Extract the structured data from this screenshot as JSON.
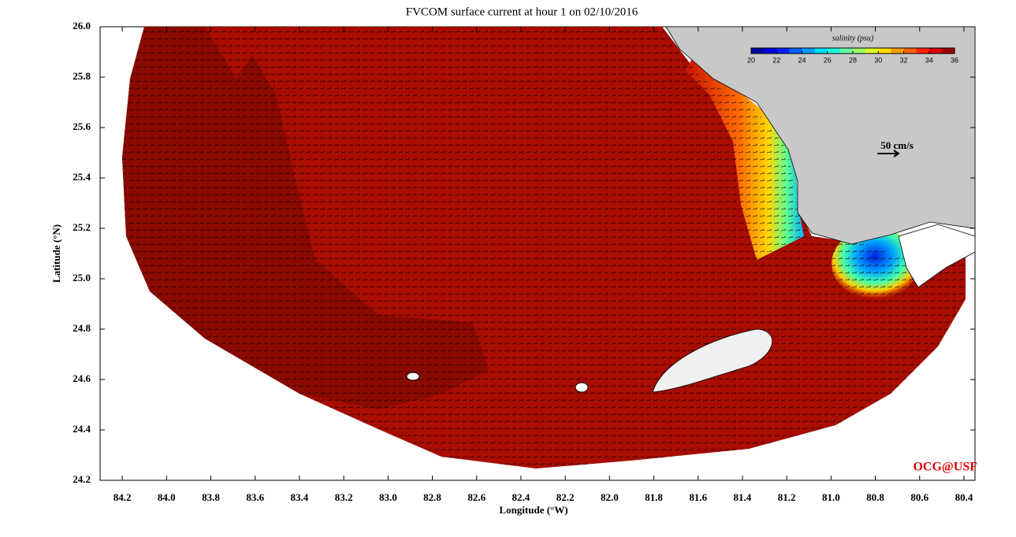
{
  "chart_data": {
    "type": "map",
    "title": "FVCOM surface current at hour 1 on 02/10/2016",
    "x_label": "Longitude (°W)",
    "y_label": "Latitude (°N)",
    "xlim": [
      84.3,
      80.35
    ],
    "ylim": [
      24.2,
      26.0
    ],
    "xticks": [
      84.2,
      {
        "value": 84,
        "label": "84.0"
      },
      83.8,
      83.6,
      83.4,
      83.2,
      {
        "value": 83,
        "label": "83.0"
      },
      82.8,
      82.6,
      82.4,
      82.2,
      {
        "value": 82,
        "label": "82.0"
      },
      81.8,
      81.6,
      81.4,
      81.2,
      {
        "value": 81,
        "label": "81.0"
      },
      80.8,
      80.6,
      80.4
    ],
    "yticks": [
      24.2,
      24.4,
      24.6,
      24.8,
      {
        "value": 25,
        "label": "25.0"
      },
      25.2,
      25.4,
      25.6,
      25.8,
      {
        "value": 26,
        "label": "26.0"
      }
    ],
    "colorbar": {
      "label": "salinity (psu)",
      "lim": [
        20,
        36
      ],
      "ticks": [
        20,
        22,
        24,
        26,
        28,
        30,
        32,
        34,
        36
      ]
    },
    "scale_arrow_label": "50 cm/s",
    "watermark": "OCG@USF"
  }
}
